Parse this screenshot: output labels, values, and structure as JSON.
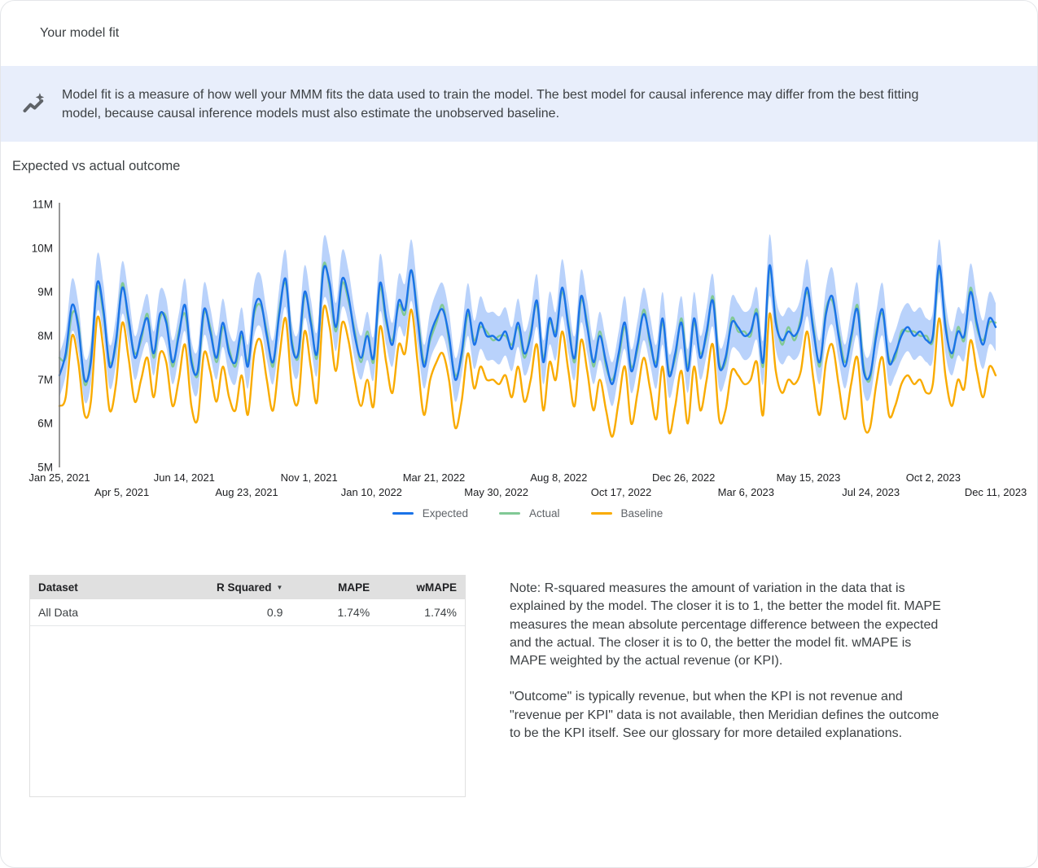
{
  "page": {
    "title": "Your model fit"
  },
  "banner": {
    "icon": "model-fit-sparkline-icon",
    "text": "Model fit is a measure of how well your MMM fits the data used to train the model. The best model for causal inference may differ from the best fitting model, because causal inference models must also estimate the unobserved baseline.",
    "background": "#e8eefb"
  },
  "section": {
    "title": "Expected vs actual outcome"
  },
  "chart_data": {
    "type": "line",
    "title": "Expected vs actual outcome",
    "xlabel": "",
    "ylabel": "",
    "unit": "M",
    "ylim": [
      5,
      11
    ],
    "grid": false,
    "legend_position": "bottom",
    "y_ticks": [
      "5M",
      "6M",
      "7M",
      "8M",
      "9M",
      "10M",
      "11M"
    ],
    "x_ticks": [
      "Jan 25, 2021",
      "Apr 5, 2021",
      "Jun 14, 2021",
      "Aug 23, 2021",
      "Nov 1, 2021",
      "Jan 10, 2022",
      "Mar 21, 2022",
      "May 30, 2022",
      "Aug 8, 2022",
      "Oct 17, 2022",
      "Dec 26, 2022",
      "Mar 6, 2023",
      "May 15, 2023",
      "Jul 24, 2023",
      "Oct 2, 2023",
      "Dec 11, 2023"
    ],
    "axis_color": "#757575",
    "tick_label_color": "#202124",
    "band": {
      "follows": "Expected",
      "color": "#a8c7fa",
      "opacity": 0.8,
      "halfwidth": [
        0.5,
        0.5,
        0.6,
        0.55,
        0.5,
        0.5,
        0.65,
        0.6,
        0.5,
        0.55,
        0.6,
        0.55,
        0.5,
        0.5,
        0.55,
        0.5,
        0.55,
        0.55,
        0.5,
        0.5,
        0.6,
        0.5,
        0.5,
        0.6,
        0.55,
        0.5,
        0.55,
        0.5,
        0.5,
        0.55,
        0.5,
        0.6,
        0.6,
        0.55,
        0.5,
        0.6,
        0.65,
        0.5,
        0.5,
        0.6,
        0.55,
        0.5,
        0.7,
        0.65,
        0.55,
        0.65,
        0.6,
        0.55,
        0.5,
        0.55,
        0.5,
        0.65,
        0.6,
        0.5,
        0.6,
        0.6,
        0.7,
        0.6,
        0.5,
        0.55,
        0.6,
        0.6,
        0.55,
        0.5,
        0.5,
        0.6,
        0.55,
        0.6,
        0.55,
        0.55,
        0.55,
        0.55,
        0.5,
        0.55,
        0.5,
        0.55,
        0.6,
        0.5,
        0.6,
        0.55,
        0.65,
        0.6,
        0.5,
        0.6,
        0.6,
        0.5,
        0.55,
        0.5,
        0.5,
        0.5,
        0.6,
        0.5,
        0.55,
        0.6,
        0.55,
        0.5,
        0.6,
        0.5,
        0.5,
        0.6,
        0.5,
        0.6,
        0.5,
        0.55,
        0.6,
        0.5,
        0.5,
        0.6,
        0.55,
        0.55,
        0.55,
        0.6,
        0.5,
        0.7,
        0.6,
        0.55,
        0.55,
        0.55,
        0.6,
        0.65,
        0.55,
        0.5,
        0.6,
        0.65,
        0.55,
        0.5,
        0.55,
        0.6,
        0.5,
        0.5,
        0.55,
        0.6,
        0.5,
        0.5,
        0.55,
        0.55,
        0.55,
        0.55,
        0.5,
        0.55,
        0.6,
        0.6,
        0.5,
        0.55,
        0.55,
        0.65,
        0.6,
        0.55,
        0.6,
        0.55
      ]
    },
    "series": [
      {
        "name": "Expected",
        "color": "#1a73e8",
        "values": [
          7.1,
          7.6,
          8.7,
          8.2,
          7.0,
          7.4,
          9.2,
          8.6,
          7.3,
          7.9,
          9.1,
          8.4,
          7.5,
          8.0,
          8.4,
          7.6,
          8.5,
          8.3,
          7.4,
          8.0,
          8.7,
          7.4,
          7.2,
          8.6,
          8.1,
          7.5,
          8.3,
          7.6,
          7.4,
          8.1,
          7.3,
          8.6,
          8.8,
          8.0,
          7.4,
          8.5,
          9.3,
          7.8,
          7.6,
          9.0,
          8.3,
          7.6,
          9.5,
          9.2,
          8.2,
          9.3,
          8.9,
          8.0,
          7.5,
          8.0,
          7.5,
          9.2,
          8.4,
          7.8,
          8.8,
          8.6,
          9.5,
          8.4,
          7.3,
          8.0,
          8.4,
          8.6,
          8.0,
          7.0,
          7.6,
          8.6,
          7.8,
          8.3,
          8.0,
          8.0,
          7.9,
          8.1,
          7.7,
          8.3,
          7.6,
          8.0,
          8.8,
          7.4,
          8.4,
          8.0,
          9.1,
          8.2,
          7.5,
          8.9,
          8.2,
          7.4,
          8.0,
          7.4,
          6.9,
          7.6,
          8.3,
          7.2,
          7.8,
          8.5,
          7.9,
          7.3,
          8.4,
          7.1,
          7.6,
          8.3,
          7.2,
          8.4,
          7.5,
          8.1,
          8.8,
          7.3,
          7.5,
          8.3,
          8.2,
          8.0,
          8.1,
          8.5,
          7.4,
          9.6,
          8.3,
          7.9,
          8.1,
          8.0,
          8.3,
          9.1,
          8.1,
          7.4,
          8.5,
          8.9,
          8.0,
          7.3,
          8.0,
          8.6,
          7.2,
          7.1,
          8.0,
          8.6,
          7.4,
          7.6,
          8.0,
          8.2,
          8.0,
          8.1,
          7.9,
          8.0,
          9.6,
          8.2,
          7.6,
          8.1,
          8.0,
          9.0,
          8.3,
          7.8,
          8.4,
          8.2
        ]
      },
      {
        "name": "Actual",
        "color": "#81c995",
        "values": [
          7.5,
          7.5,
          8.5,
          8.3,
          6.9,
          7.5,
          9.1,
          8.5,
          7.4,
          7.8,
          9.2,
          8.3,
          7.6,
          7.9,
          8.5,
          7.5,
          8.4,
          8.4,
          7.3,
          8.1,
          8.5,
          7.5,
          7.1,
          8.5,
          8.2,
          7.4,
          8.2,
          7.7,
          7.3,
          8.0,
          7.4,
          8.5,
          8.7,
          8.1,
          7.3,
          8.6,
          9.2,
          7.9,
          7.5,
          8.9,
          8.4,
          7.5,
          9.6,
          9.1,
          8.1,
          9.2,
          8.8,
          8.1,
          7.4,
          8.1,
          7.4,
          9.1,
          8.3,
          7.9,
          8.7,
          8.5,
          9.5,
          8.5,
          7.4,
          7.9,
          8.3,
          8.7,
          7.9,
          7.1,
          7.5,
          8.5,
          7.9,
          8.2,
          8.1,
          7.9,
          8.0,
          8.0,
          7.8,
          8.2,
          7.5,
          8.1,
          8.7,
          7.5,
          8.3,
          8.1,
          9.0,
          8.3,
          7.4,
          8.8,
          8.3,
          7.3,
          8.1,
          7.3,
          7.0,
          7.5,
          8.2,
          7.3,
          7.7,
          8.6,
          7.8,
          7.4,
          8.3,
          7.2,
          7.5,
          8.4,
          7.3,
          8.3,
          7.6,
          8.0,
          8.9,
          7.4,
          7.4,
          8.4,
          8.1,
          8.1,
          8.0,
          8.6,
          7.3,
          9.5,
          8.4,
          7.8,
          8.2,
          7.9,
          8.4,
          9.0,
          8.2,
          7.3,
          8.6,
          8.8,
          8.1,
          7.4,
          7.9,
          8.7,
          7.3,
          7.0,
          8.1,
          8.5,
          7.5,
          7.5,
          8.1,
          8.1,
          8.1,
          8.0,
          8.0,
          7.9,
          9.5,
          8.3,
          7.5,
          8.2,
          7.9,
          9.1,
          8.2,
          7.9,
          8.3,
          8.3
        ]
      },
      {
        "name": "Baseline",
        "color": "#f9ab00",
        "values": [
          6.4,
          6.6,
          8.0,
          7.4,
          6.2,
          6.5,
          8.4,
          7.7,
          6.3,
          6.9,
          8.3,
          7.5,
          6.5,
          7.0,
          7.5,
          6.6,
          7.6,
          7.4,
          6.4,
          7.0,
          7.8,
          6.4,
          6.1,
          7.6,
          7.2,
          6.5,
          7.3,
          6.6,
          6.3,
          7.1,
          6.2,
          7.6,
          7.9,
          7.0,
          6.3,
          7.5,
          8.4,
          6.8,
          6.5,
          8.1,
          7.3,
          6.5,
          8.6,
          8.2,
          7.2,
          8.3,
          7.9,
          7.0,
          6.4,
          7.0,
          6.4,
          8.2,
          7.4,
          6.7,
          7.8,
          7.6,
          8.6,
          7.4,
          6.2,
          7.0,
          7.4,
          7.6,
          7.0,
          5.9,
          6.5,
          7.6,
          6.8,
          7.3,
          7.0,
          7.0,
          6.9,
          7.1,
          6.6,
          7.3,
          6.5,
          7.0,
          7.8,
          6.3,
          7.4,
          7.0,
          8.1,
          7.2,
          6.4,
          7.9,
          7.2,
          6.3,
          7.0,
          6.3,
          5.7,
          6.5,
          7.3,
          6.0,
          6.7,
          7.5,
          6.8,
          6.1,
          7.3,
          5.8,
          6.4,
          7.2,
          6.0,
          7.3,
          6.3,
          7.0,
          7.8,
          6.1,
          6.3,
          7.2,
          7.1,
          6.9,
          7.0,
          7.4,
          6.2,
          8.5,
          7.2,
          6.7,
          7.0,
          6.9,
          7.2,
          8.1,
          7.0,
          6.2,
          7.4,
          7.8,
          6.9,
          6.1,
          6.9,
          7.5,
          6.0,
          5.9,
          6.9,
          7.5,
          6.2,
          6.4,
          6.9,
          7.1,
          6.9,
          7.0,
          6.7,
          6.9,
          8.4,
          7.1,
          6.4,
          7.0,
          6.8,
          7.9,
          7.2,
          6.6,
          7.3,
          7.1
        ]
      }
    ]
  },
  "table": {
    "columns": [
      {
        "label": "Dataset"
      },
      {
        "label": "R Squared",
        "sort": "desc",
        "sort_icon": "▼"
      },
      {
        "label": "MAPE"
      },
      {
        "label": "wMAPE"
      }
    ],
    "rows": [
      [
        "All Data",
        "0.9",
        "1.74%",
        "1.74%"
      ]
    ]
  },
  "note": {
    "para1": "Note: R-squared measures the amount of variation in the data that is explained by the model. The closer it is to 1, the better the model fit. MAPE measures the mean absolute percentage difference between the expected and the actual. The closer it is to 0, the better the model fit. wMAPE is MAPE weighted by the actual revenue (or KPI).",
    "para2": "\"Outcome\" is typically revenue, but when the KPI is not revenue and \"revenue per KPI\" data is not available, then Meridian defines the outcome to be the KPI itself. See our glossary for more detailed explanations."
  }
}
